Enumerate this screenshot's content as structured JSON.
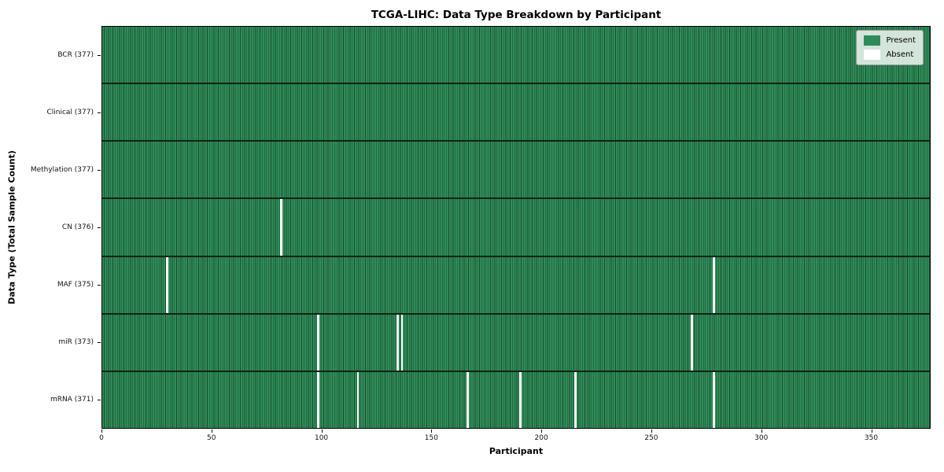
{
  "chart_data": {
    "type": "heatmap",
    "title": "TCGA-LIHC: Data Type Breakdown by Participant",
    "xlabel": "Participant",
    "ylabel": "Data Type (Total Sample Count)",
    "xlim": [
      0,
      377
    ],
    "n_participants": 377,
    "x_ticks": [
      0,
      50,
      100,
      150,
      200,
      250,
      300,
      350
    ],
    "grid": false,
    "rows": [
      {
        "data_type": "BCR",
        "label": "BCR (377)",
        "present_count": 377,
        "absent_participants": []
      },
      {
        "data_type": "Clinical",
        "label": "Clinical (377)",
        "present_count": 377,
        "absent_participants": []
      },
      {
        "data_type": "Methylation",
        "label": "Methylation (377)",
        "present_count": 377,
        "absent_participants": []
      },
      {
        "data_type": "CN",
        "label": "CN (376)",
        "present_count": 376,
        "absent_participants": [
          81
        ]
      },
      {
        "data_type": "MAF",
        "label": "MAF (375)",
        "present_count": 375,
        "absent_participants": [
          29,
          278
        ]
      },
      {
        "data_type": "miR",
        "label": "miR (373)",
        "present_count": 373,
        "absent_participants": [
          98,
          134,
          136,
          268
        ]
      },
      {
        "data_type": "mRNA",
        "label": "mRNA (371)",
        "present_count": 371,
        "absent_participants": [
          98,
          116,
          166,
          190,
          215,
          278
        ]
      }
    ],
    "legend": {
      "position": "upper right",
      "entries": [
        {
          "label": "Present",
          "color": "#2e8b57"
        },
        {
          "label": "Absent",
          "color": "#ffffff"
        }
      ]
    },
    "colors": {
      "present": "#2f8b58",
      "present_edge": "#1a4c2f",
      "row_separator": "#0c2416",
      "absent": "#ffffff",
      "background": "#ffffff"
    }
  }
}
